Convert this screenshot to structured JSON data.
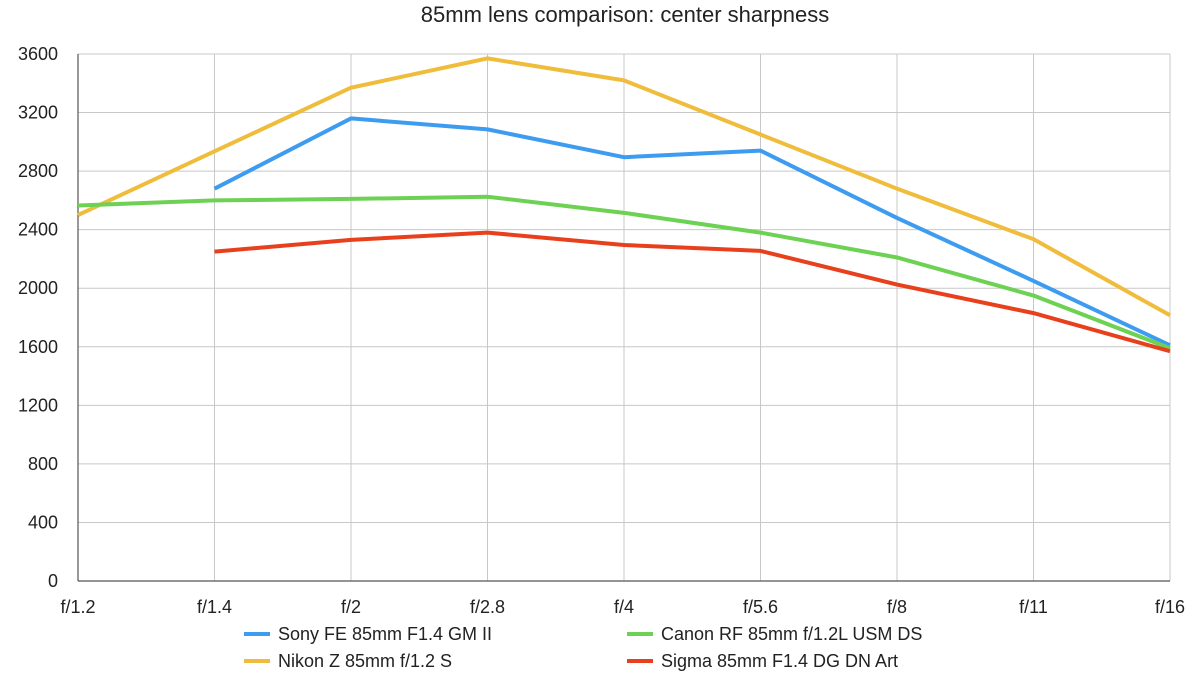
{
  "chart_data": {
    "type": "line",
    "title": "85mm lens comparison: center sharpness",
    "xlabel": "",
    "ylabel": "",
    "categories": [
      "f/1.2",
      "f/1.4",
      "f/2",
      "f/2.8",
      "f/4",
      "f/5.6",
      "f/8",
      "f/11",
      "f/16"
    ],
    "ylim": [
      0,
      3600
    ],
    "yticks": [
      0,
      400,
      800,
      1200,
      1600,
      2000,
      2400,
      2800,
      3200,
      3600
    ],
    "grid": true,
    "legend_position": "bottom",
    "series": [
      {
        "name": "Sony FE 85mm F1.4 GM II",
        "color": "#3d9cf0",
        "values": [
          null,
          2680,
          3160,
          3085,
          2895,
          2940,
          2480,
          2050,
          1610
        ]
      },
      {
        "name": "Nikon Z 85mm f/1.2 S",
        "color": "#f0bc3c",
        "values": [
          2500,
          2935,
          3370,
          3570,
          3420,
          3050,
          2680,
          2335,
          1815
        ]
      },
      {
        "name": "Canon RF 85mm f/1.2L USM DS",
        "color": "#6dd153",
        "values": [
          2565,
          2600,
          2610,
          2625,
          2515,
          2380,
          2210,
          1950,
          1590
        ]
      },
      {
        "name": "Sigma 85mm F1.4 DG DN Art",
        "color": "#e8401c",
        "values": [
          null,
          2250,
          2330,
          2380,
          2295,
          2255,
          2025,
          1830,
          1570
        ]
      }
    ]
  }
}
